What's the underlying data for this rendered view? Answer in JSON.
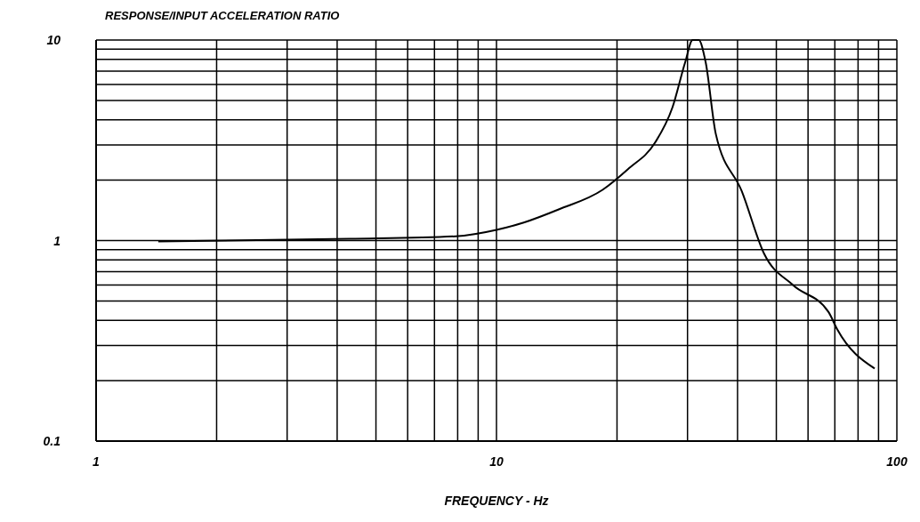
{
  "chart_data": {
    "type": "line",
    "ylabel": "RESPONSE/INPUT ACCELERATION RATIO",
    "xlabel": "FREQUENCY - Hz",
    "log": "xy",
    "grid": true,
    "xlim": [
      1,
      100
    ],
    "ylim": [
      0.1,
      10
    ],
    "xticks": [
      1,
      {
        "value": 2,
        "label": null
      },
      {
        "value": 3,
        "label": null
      },
      {
        "value": 4,
        "label": null
      },
      {
        "value": 5,
        "label": null
      },
      {
        "value": 6,
        "label": null
      },
      {
        "value": 7,
        "label": null
      },
      {
        "value": 8,
        "label": null
      },
      {
        "value": 9,
        "label": null
      },
      10,
      {
        "value": 20,
        "label": null
      },
      {
        "value": 30,
        "label": null
      },
      {
        "value": 40,
        "label": null
      },
      {
        "value": 50,
        "label": null
      },
      {
        "value": 60,
        "label": null
      },
      {
        "value": 70,
        "label": null
      },
      {
        "value": 80,
        "label": null
      },
      {
        "value": 90,
        "label": null
      },
      100
    ],
    "yticks": [
      0.1,
      {
        "value": 0.2,
        "label": null
      },
      {
        "value": 0.3,
        "label": null
      },
      {
        "value": 0.4,
        "label": null
      },
      {
        "value": 0.5,
        "label": null
      },
      {
        "value": 0.6,
        "label": null
      },
      {
        "value": 0.7,
        "label": null
      },
      {
        "value": 0.8,
        "label": null
      },
      {
        "value": 0.9,
        "label": null
      },
      1,
      {
        "value": 2,
        "label": null
      },
      {
        "value": 3,
        "label": null
      },
      {
        "value": 4,
        "label": null
      },
      {
        "value": 5,
        "label": null
      },
      {
        "value": 6,
        "label": null
      },
      {
        "value": 7,
        "label": null
      },
      {
        "value": 8,
        "label": null
      },
      {
        "value": 9,
        "label": null
      },
      10
    ],
    "series": [
      {
        "color": "#000000",
        "x": [
          1.43,
          4.3,
          7.9,
          10,
          11.7,
          14.3,
          18.4,
          21.3,
          24.9,
          27.5,
          29.6,
          30.9,
          32,
          33.3,
          35.3,
          41,
          46.6,
          55,
          67.5,
          71,
          88
        ],
        "values": [
          0.99,
          1.02,
          1.05,
          1.13,
          1.23,
          1.43,
          1.79,
          2.27,
          3.08,
          4.6,
          7.75,
          10,
          10,
          7.75,
          3.4,
          1.76,
          0.86,
          0.6,
          0.44,
          0.36,
          0.23
        ]
      }
    ]
  }
}
